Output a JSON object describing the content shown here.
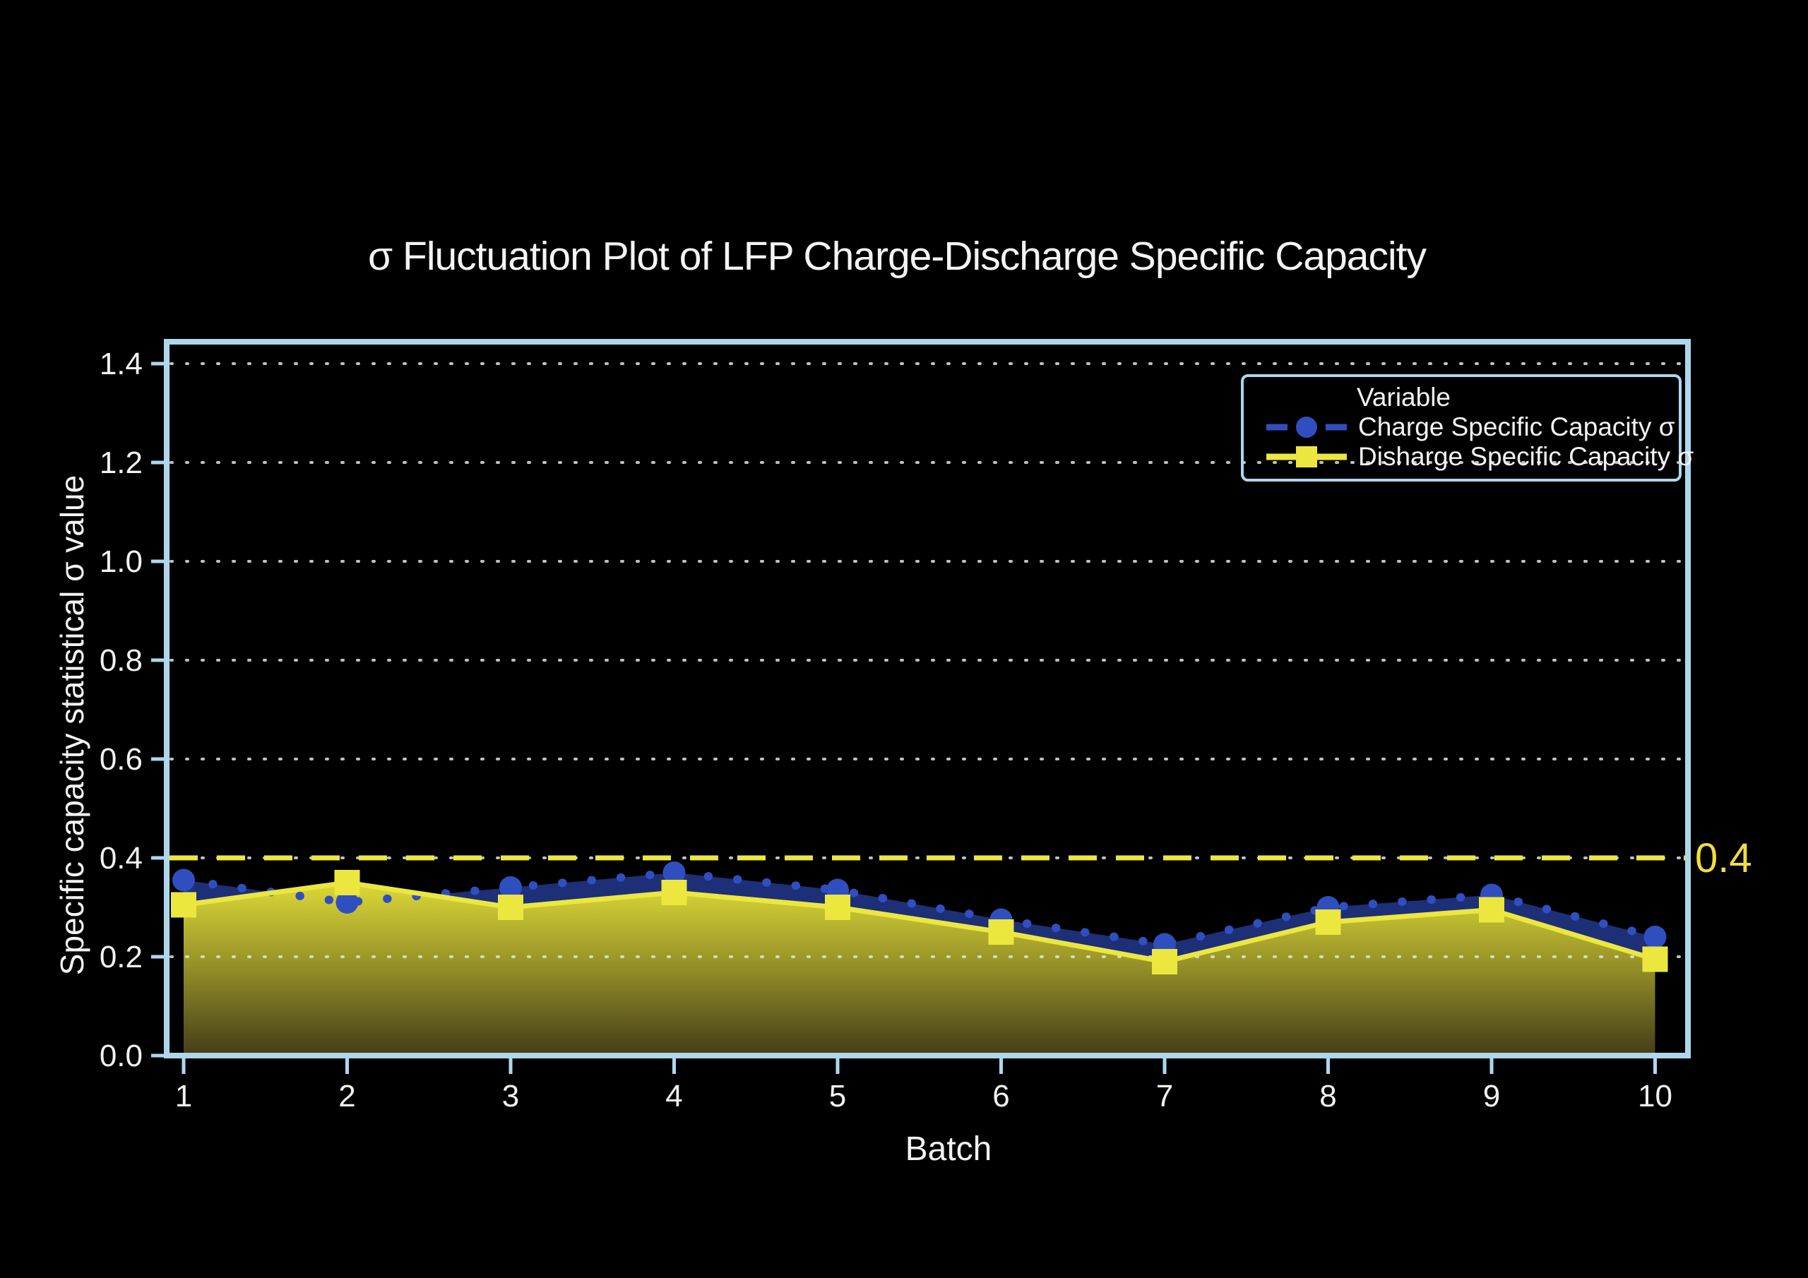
{
  "title": "σ Fluctuation Plot of LFP Charge-Discharge Specific Capacity",
  "axes": {
    "x_label": "Batch",
    "y_label": "Specific capacity statistical σ value",
    "x_tick_labels": [
      "1",
      "2",
      "3",
      "4",
      "5",
      "6",
      "7",
      "8",
      "9",
      "10"
    ],
    "y_tick_labels": [
      "0.0",
      "0.2",
      "0.4",
      "0.6",
      "0.8",
      "1.0",
      "1.2",
      "1.4"
    ]
  },
  "legend": {
    "title": "Variable",
    "items": [
      {
        "label": "Charge Specific Capacity σ",
        "series": "charge"
      },
      {
        "label": "Disharge Specific Capacity σ",
        "series": "discharge"
      }
    ]
  },
  "annotation": {
    "threshold_label": "0.4",
    "threshold_value": 0.4
  },
  "colors": {
    "background": "#000000",
    "plot_border": "#aed7ec",
    "grid_dots": "#dce8dc",
    "text": "#f2f2f2",
    "charge_blue": "#2f4fc1",
    "charge_fill_navy": "#1d2f77",
    "discharge_yellow": "#ece73f",
    "discharge_fill_top": "#dcd938",
    "discharge_fill_mid": "#9b9629",
    "discharge_fill_bottom": "#453f18",
    "threshold_yellow": "#ece73f",
    "threshold_label_yellow": "#f2dd3d"
  },
  "chart_data": {
    "type": "line",
    "title": "σ Fluctuation Plot of LFP Charge-Discharge Specific Capacity",
    "xlabel": "Batch",
    "ylabel": "Specific capacity statistical σ value",
    "categories": [
      1,
      2,
      3,
      4,
      5,
      6,
      7,
      8,
      9,
      10
    ],
    "series": [
      {
        "name": "Charge Specific Capacity σ",
        "values": [
          0.355,
          0.31,
          0.34,
          0.37,
          0.335,
          0.275,
          0.225,
          0.3,
          0.325,
          0.24
        ],
        "color": "#2f4fc1",
        "marker": "circle",
        "line_style": "dotted",
        "area_fill": "#1d2f77"
      },
      {
        "name": "Disharge Specific Capacity σ",
        "values": [
          0.305,
          0.35,
          0.3,
          0.33,
          0.3,
          0.25,
          0.19,
          0.27,
          0.295,
          0.195
        ],
        "color": "#ece73f",
        "marker": "square",
        "line_style": "solid",
        "area_fill_gradient": [
          "#dcd938",
          "#9b9629",
          "#453f18"
        ]
      }
    ],
    "threshold_line": {
      "value": 0.4,
      "label": "0.4",
      "color": "#ece73f",
      "style": "dashed"
    },
    "ylim": [
      0,
      1.445
    ],
    "y_ticks": [
      0.0,
      0.2,
      0.4,
      0.6,
      0.8,
      1.0,
      1.2,
      1.4
    ],
    "grid": "horizontal dotted",
    "legend_position": "upper right"
  }
}
